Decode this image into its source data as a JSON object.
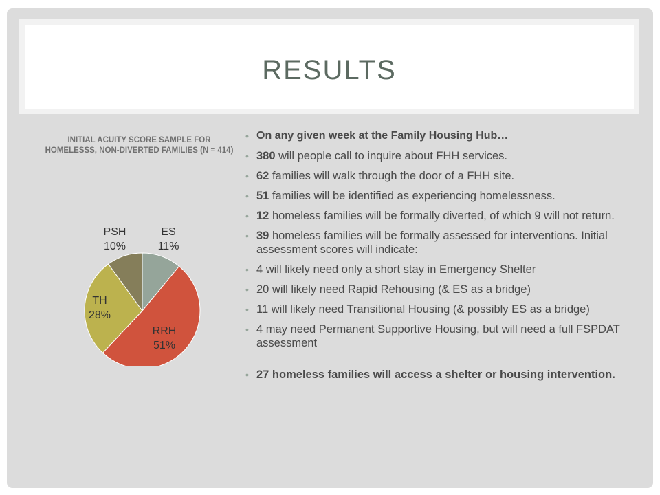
{
  "title": "RESULTS",
  "chart_title": "INITIAL ACUITY SCORE SAMPLE FOR HOMELESSS, NON-DIVERTED FAMILIES (N = 414)",
  "chart_data": {
    "type": "pie",
    "title": "INITIAL ACUITY SCORE SAMPLE FOR HOMELESSS, NON-DIVERTED FAMILIES (N = 414)",
    "slices": [
      {
        "label": "ES",
        "pct_label": "11%",
        "value": 11,
        "color": "#95a59a"
      },
      {
        "label": "RRH",
        "pct_label": "51%",
        "value": 51,
        "color": "#d0533d"
      },
      {
        "label": "TH",
        "pct_label": "28%",
        "value": 28,
        "color": "#bcb24e"
      },
      {
        "label": "PSH",
        "pct_label": "10%",
        "value": 10,
        "color": "#857e5a"
      }
    ]
  },
  "bullets": {
    "header": "On any given week at the Family Housing Hub…",
    "b1": {
      "num": "380",
      "text": " will people call to inquire about FHH services."
    },
    "b2": {
      "num": "62",
      "text": " families will walk through the door of a FHH site."
    },
    "b3": {
      "num": "51",
      "text": " families will be identified as experiencing homelessness."
    },
    "b4": {
      "num": "12",
      "text": " homeless families will be formally diverted, of which 9 will not return."
    },
    "b5": {
      "num": "39",
      "text": " homeless families will be formally assessed for interventions. Initial assessment scores will indicate:"
    },
    "b6": "4 will likely need only a short stay in Emergency Shelter",
    "b7": "20 will likely need Rapid Rehousing (& ES as a bridge)",
    "b8": "11 will likely need Transitional Housing (& possibly ES as a bridge)",
    "b9": "4 may need Permanent Supportive Housing, but will need a full FSPDAT assessment",
    "final": "27 homeless families will access a shelter or housing intervention."
  }
}
